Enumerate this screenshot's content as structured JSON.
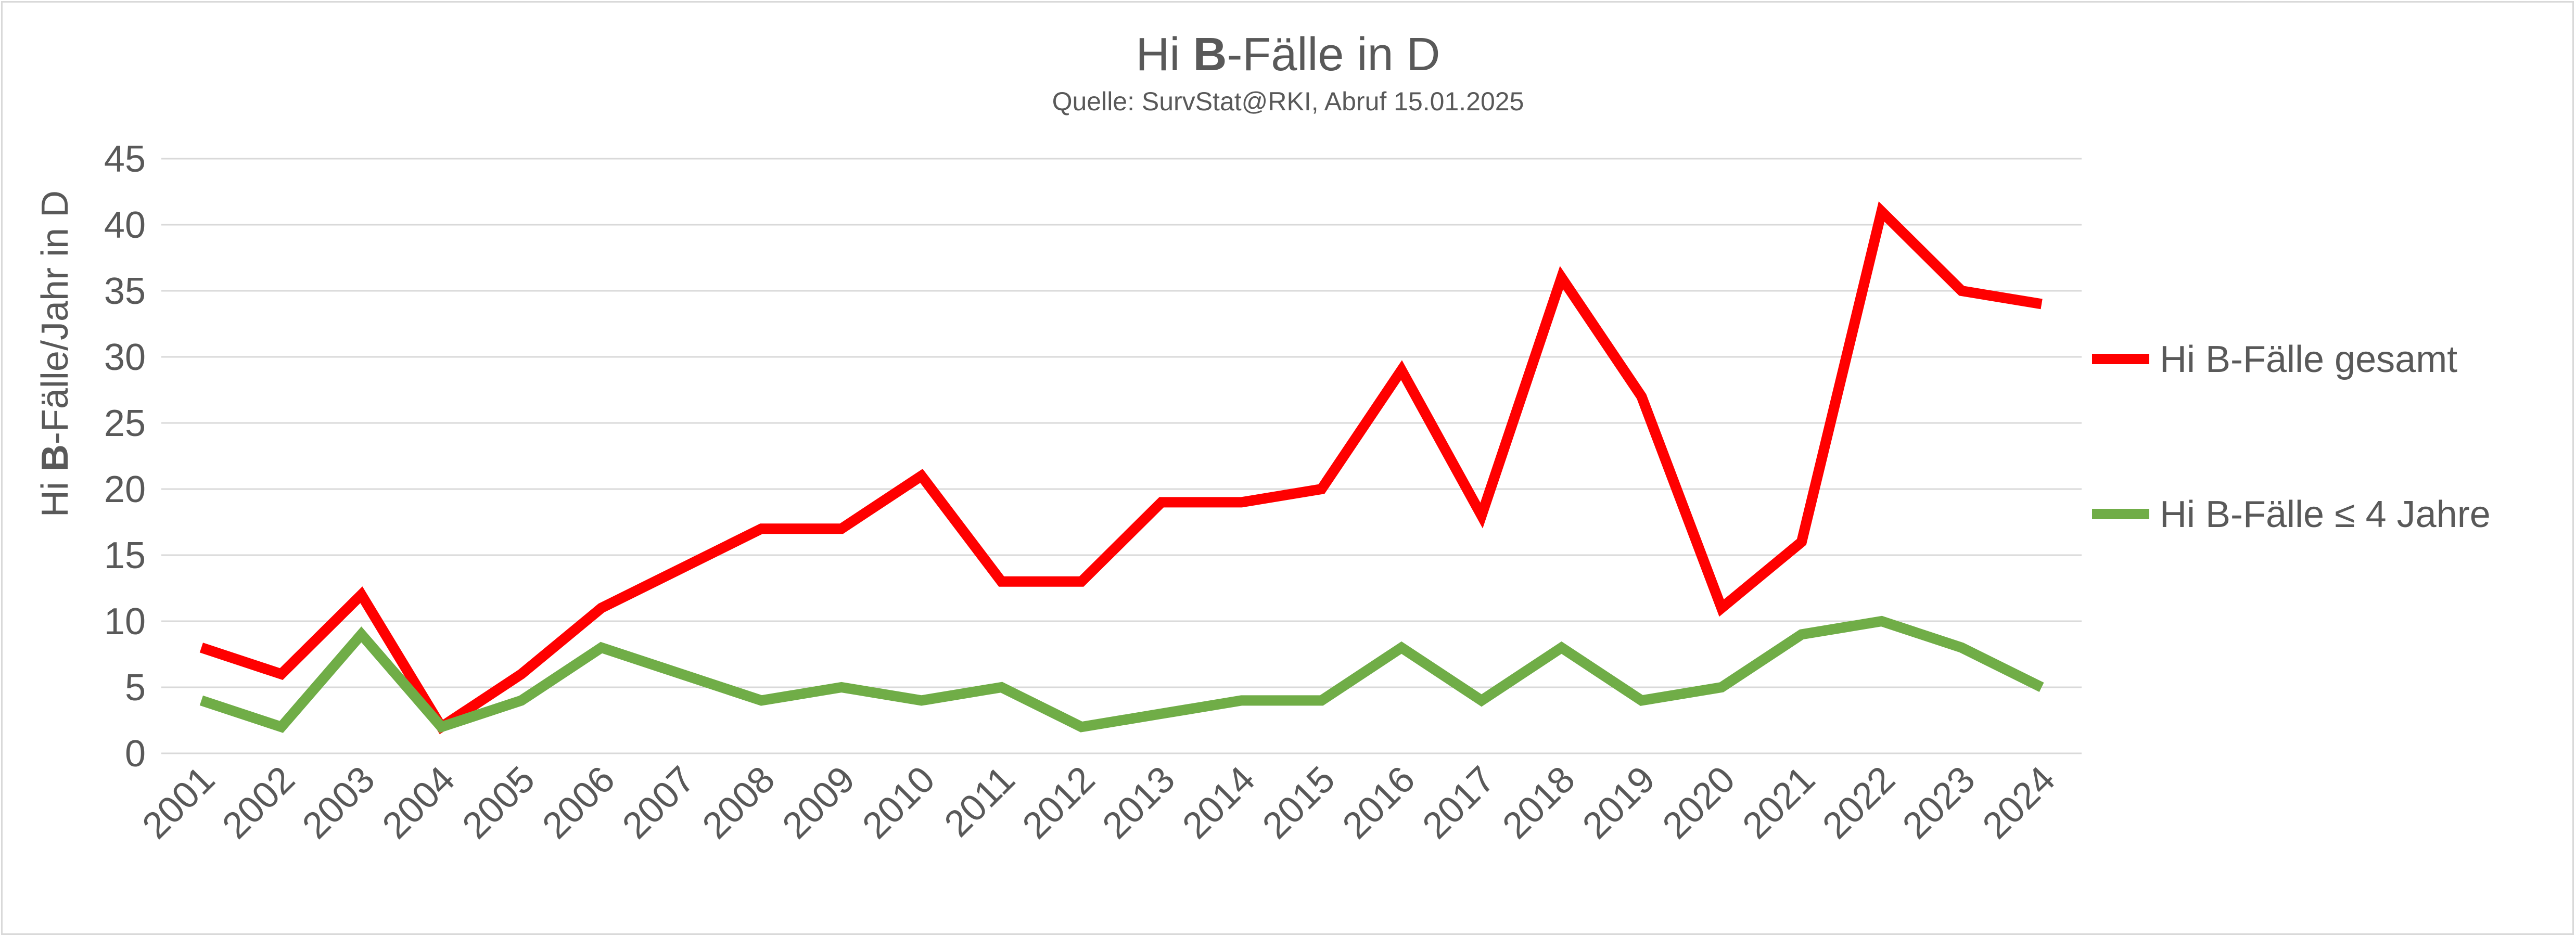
{
  "chart_data": {
    "type": "line",
    "title_parts": [
      "Hi ",
      "B",
      "-Fälle in D"
    ],
    "subtitle": "Quelle: SurvStat@RKI, Abruf 15.01.2025",
    "ylabel_parts": [
      "Hi ",
      "B",
      "-Fälle/Jahr in D"
    ],
    "xlabel": "",
    "ylim": [
      0,
      45
    ],
    "yticks": [
      0,
      5,
      10,
      15,
      20,
      25,
      30,
      35,
      40,
      45
    ],
    "grid": true,
    "legend_position": "right",
    "categories": [
      "2001",
      "2002",
      "2003",
      "2004",
      "2005",
      "2006",
      "2007",
      "2008",
      "2009",
      "2010",
      "2011",
      "2012",
      "2013",
      "2014",
      "2015",
      "2016",
      "2017",
      "2018",
      "2019",
      "2020",
      "2021",
      "2022",
      "2023",
      "2024"
    ],
    "series": [
      {
        "name": "Hi B-Fälle gesamt",
        "color": "#ff0000",
        "values": [
          8,
          6,
          12,
          2,
          6,
          11,
          14,
          17,
          17,
          21,
          13,
          13,
          19,
          19,
          20,
          29,
          18,
          36,
          27,
          11,
          16,
          41,
          35,
          34
        ]
      },
      {
        "name": "Hi B-Fälle ≤ 4 Jahre",
        "color": "#70ad47",
        "values": [
          4,
          2,
          9,
          2,
          4,
          8,
          6,
          4,
          5,
          4,
          5,
          2,
          3,
          4,
          4,
          8,
          4,
          8,
          4,
          5,
          9,
          10,
          8,
          5
        ]
      }
    ]
  }
}
